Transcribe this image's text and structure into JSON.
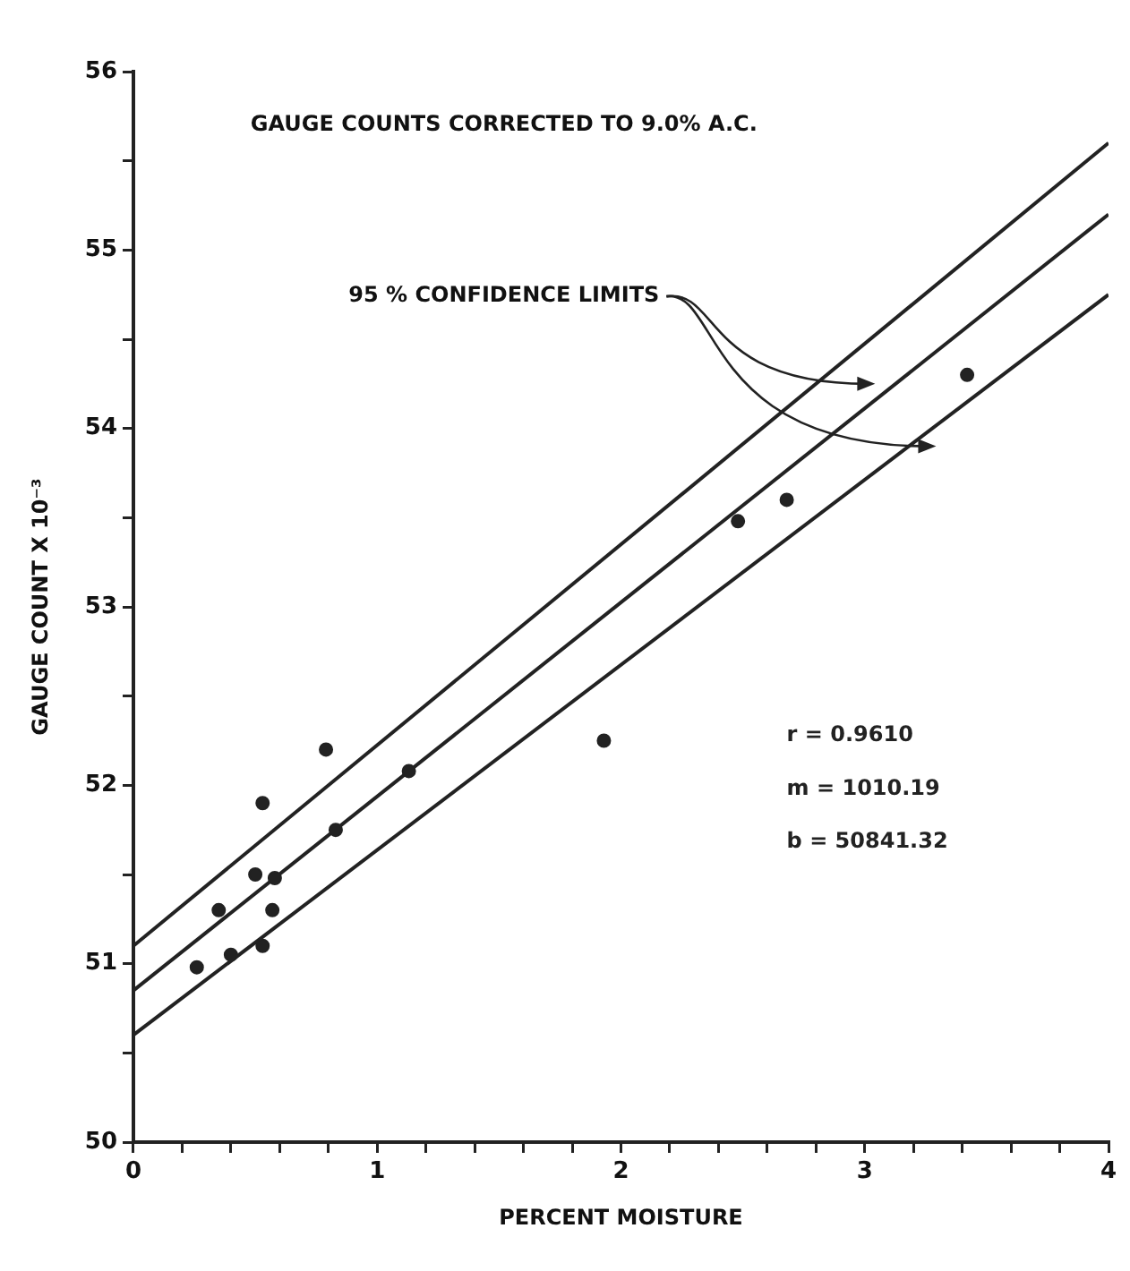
{
  "chart_data": {
    "type": "scatter",
    "xlabel": "PERCENT MOISTURE",
    "ylabel": "GAUGE COUNT X 10⁻³",
    "annotations": [
      "GAUGE COUNTS CORRECTED TO 9.0% A.C.",
      "95 % CONFIDENCE LIMITS",
      "r = 0.9610",
      "m = 1010.19",
      "b = 50841.32"
    ],
    "xlim": [
      0,
      4
    ],
    "ylim": [
      50,
      56
    ],
    "xticks": [
      0,
      {
        "value": 0.2,
        "label": null
      },
      {
        "value": 0.4,
        "label": null
      },
      {
        "value": 0.6,
        "label": null
      },
      {
        "value": 0.8,
        "label": null
      },
      1,
      {
        "value": 1.2,
        "label": null
      },
      {
        "value": 1.4,
        "label": null
      },
      {
        "value": 1.6,
        "label": null
      },
      {
        "value": 1.8,
        "label": null
      },
      2,
      {
        "value": 2.2,
        "label": null
      },
      {
        "value": 2.4,
        "label": null
      },
      {
        "value": 2.6,
        "label": null
      },
      {
        "value": 2.8,
        "label": null
      },
      3,
      {
        "value": 3.2,
        "label": null
      },
      {
        "value": 3.4,
        "label": null
      },
      {
        "value": 3.6,
        "label": null
      },
      {
        "value": 3.8,
        "label": null
      },
      4
    ],
    "yticks": [
      50,
      {
        "value": 50.5,
        "label": null
      },
      51,
      {
        "value": 51.5,
        "label": null
      },
      52,
      {
        "value": 52.5,
        "label": null
      },
      53,
      {
        "value": 53.5,
        "label": null
      },
      54,
      {
        "value": 54.5,
        "label": null
      },
      55,
      {
        "value": 55.5,
        "label": null
      },
      56
    ],
    "grid": false,
    "legend": false,
    "marker": "circle",
    "series": [
      {
        "type": "scatter",
        "color": "#222222",
        "x": [
          0.26,
          0.35,
          0.4,
          0.53,
          0.57,
          0.5,
          0.58,
          0.53,
          0.83,
          0.79,
          1.13,
          1.93,
          2.48,
          2.68,
          3.42
        ],
        "values": [
          50.98,
          51.3,
          51.05,
          51.1,
          51.3,
          51.5,
          51.48,
          51.9,
          51.75,
          52.2,
          52.08,
          52.25,
          53.48,
          53.6,
          54.3
        ]
      },
      {
        "type": "line",
        "color": "#222222",
        "marker": "none",
        "x": [
          0,
          4
        ],
        "values": [
          51.1,
          55.6
        ]
      },
      {
        "type": "line",
        "color": "#222222",
        "marker": "none",
        "x": [
          0,
          4
        ],
        "values": [
          50.85,
          55.2
        ]
      },
      {
        "type": "line",
        "color": "#222222",
        "marker": "none",
        "x": [
          0,
          4
        ],
        "values": [
          50.6,
          54.75
        ]
      }
    ]
  }
}
